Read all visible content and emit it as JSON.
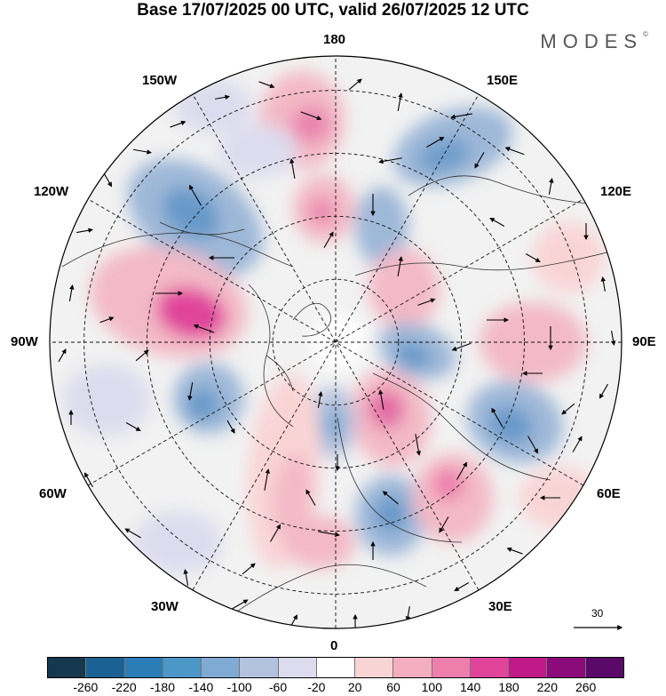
{
  "title": "Base 17/07/2025 00 UTC, valid 26/07/2025 12 UTC",
  "brand": "MODES",
  "brand_mark": "©",
  "longitude_labels": {
    "top": "180",
    "bottom": "0",
    "left": "90W",
    "right": "90E",
    "upper_left_1": "150W",
    "upper_left_2": "120W",
    "upper_right_1": "150E",
    "upper_right_2": "120E",
    "lower_left_1": "60W",
    "lower_left_2": "30W",
    "lower_right_1": "60E",
    "lower_right_2": "30E"
  },
  "reference_vector_label": "30",
  "colorbar": {
    "ticks": [
      "-260",
      "-220",
      "-180",
      "-140",
      "-100",
      "-60",
      "-20",
      "20",
      "60",
      "100",
      "140",
      "180",
      "220",
      "260"
    ],
    "colors": [
      "#15374f",
      "#1c6193",
      "#2b7db8",
      "#4d96c8",
      "#7faad4",
      "#b3c2de",
      "#dcdcee",
      "#ffffff",
      "#f9d4d5",
      "#f5aebf",
      "#ee7eab",
      "#e0459b",
      "#bf1a88",
      "#8c0a7a",
      "#5a0969"
    ]
  }
}
